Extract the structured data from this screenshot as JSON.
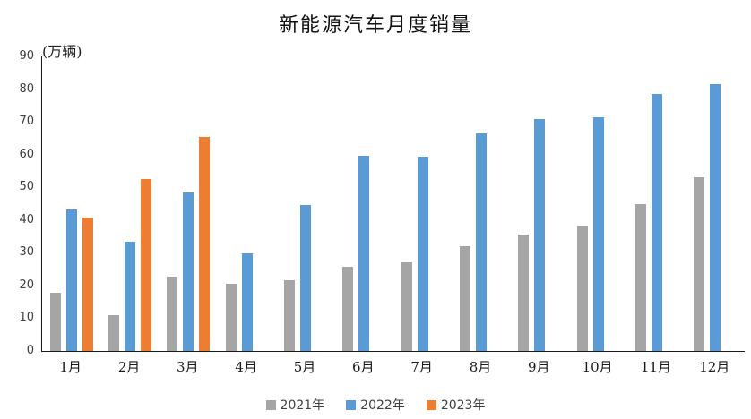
{
  "chart_data": {
    "type": "bar",
    "title": "新能源汽车月度销量",
    "unit_label": "(万辆)",
    "ylabel": "万辆",
    "categories": [
      "1月",
      "2月",
      "3月",
      "4月",
      "5月",
      "6月",
      "7月",
      "8月",
      "9月",
      "10月",
      "11月",
      "12月"
    ],
    "series": [
      {
        "name": "2021年",
        "color": "#A5A5A5",
        "values": [
          17.9,
          11.0,
          22.6,
          20.6,
          21.7,
          25.6,
          27.1,
          32.1,
          35.7,
          38.3,
          45.0,
          53.1
        ]
      },
      {
        "name": "2022年",
        "color": "#5B9BD5",
        "values": [
          43.1,
          33.4,
          48.4,
          29.9,
          44.7,
          59.6,
          59.3,
          66.6,
          70.8,
          71.4,
          78.6,
          81.4
        ]
      },
      {
        "name": "2023年",
        "color": "#ED7D31",
        "values": [
          40.8,
          52.5,
          65.3,
          null,
          null,
          null,
          null,
          null,
          null,
          null,
          null,
          null
        ]
      }
    ],
    "ylim": [
      0,
      90
    ],
    "ytick_step": 10,
    "grid": false,
    "legend_position": "bottom",
    "axis_color": "#1a1a1a"
  }
}
